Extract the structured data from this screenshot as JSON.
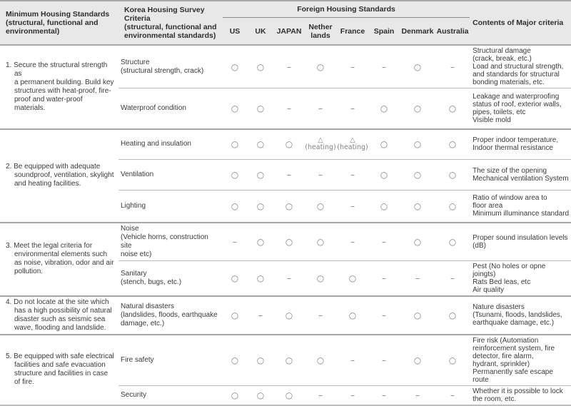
{
  "colors": {
    "header_bg": "#e8e8e8",
    "head_text": "#2e2e2e",
    "body_text": "#3a3a3a",
    "mark_gray": "#828282",
    "line_strong": "#a6a6a6",
    "line_mid": "#8c8c8c",
    "line_light": "#bdbdbd"
  },
  "table": {
    "headers": {
      "col_minimum": "Minimum Housing Standards\n(structural, functional and\nenvironmental)",
      "col_korea": "Korea Housing Survey Criteria\n(structural, functional and\nenvironmental standards)",
      "col_foreign": "Foreign Housing Standards",
      "col_contents": "Contents of Major criteria",
      "countries": [
        "US",
        "UK",
        "JAPAN",
        "Nether\nlands",
        "France",
        "Spain",
        "Denmark",
        "Australia"
      ]
    },
    "legend": {
      "included": "○",
      "not_included": "–",
      "partial": "△"
    },
    "sections": [
      {
        "standard": "1. Secure the structural strength as\na permanent building. Build key\nstructures with heat-proof, fire-\nproof and water-proof materials.",
        "rows": [
          {
            "criteria": "Structure\n(structural strength, crack)",
            "marks": [
              "○",
              "○",
              "–",
              "○",
              "–",
              "–",
              "○",
              "–"
            ],
            "contents": "Structural damage\n(crack, break, etc.)\nLoad and structural strength,\nand standards for structural\nbonding materials, etc."
          },
          {
            "criteria": "Waterproof condition",
            "marks": [
              "○",
              "○",
              "–",
              "–",
              "–",
              "○",
              "○",
              "○"
            ],
            "contents": "Leakage and waterproofing\nstatus of roof, exterior walls,\npipes, toilets, etc\nVisible mold"
          }
        ]
      },
      {
        "standard": "2. Be equipped with adequate\nsoundproof, ventilation, skylight\nand heating facilities.",
        "rows": [
          {
            "criteria": "Heating and insulation",
            "marks": [
              "○",
              "○",
              "○",
              "△\n(heating)",
              "△\n(heating)",
              "○",
              "○",
              "○"
            ],
            "contents": "Proper indoor temperature,\nIndoor thermal resistance"
          },
          {
            "criteria": "Ventilation",
            "marks": [
              "○",
              "○",
              "–",
              "–",
              "–",
              "○",
              "○",
              "○"
            ],
            "contents": "The size of the opening\nMechanical ventilation System"
          },
          {
            "criteria": "Lighting",
            "marks": [
              "○",
              "○",
              "○",
              "○",
              "–",
              "○",
              "○",
              "○"
            ],
            "contents": "Ratio of window area to\nfloor area\nMinimum illuminance standard"
          }
        ]
      },
      {
        "standard": "3. Meet the legal criteria for\nenvironmental elements such\nas noise, vibration, odor and air\npollution.",
        "rows": [
          {
            "criteria": "Noise\n(Vehicle horns, construction site\nnoise etc)",
            "marks": [
              "–",
              "○",
              "○",
              "○",
              "–",
              "–",
              "○",
              "○"
            ],
            "contents": "Proper sound insulation levels\n(dB)"
          },
          {
            "criteria": "Sanitary\n(stench, bugs, etc.)",
            "marks": [
              "○",
              "○",
              "–",
              "○",
              "○",
              "–",
              "–",
              "–"
            ],
            "contents": "Pest (No holes or opne joingts)\nRats Bed leas, etc\nAir quality"
          }
        ]
      },
      {
        "standard": "4. Do not locate at the site which\nhas a high possibility of natural\ndisaster such as seismic sea\nwave, flooding and landslide.",
        "rows": [
          {
            "criteria": "Natural disasters\n(landslides, floods, earthquake\ndamage, etc.)",
            "marks": [
              "○",
              "–",
              "○",
              "–",
              "○",
              "–",
              "○",
              "○"
            ],
            "contents": "Nature disasters\n(Tsunami, floods, landslides,\nearthquake damage, etc.)"
          }
        ]
      },
      {
        "standard": "5. Be equipped with safe electrical\nfacilities and safe evacuation\nstructure and facilities in case\nof fire.",
        "rows": [
          {
            "criteria": "Fire safety",
            "marks": [
              "○",
              "○",
              "○",
              "○",
              "–",
              "–",
              "○",
              "○"
            ],
            "contents": "Fire risk (Automation\nreinforcement system, fire\ndetector, fire alarm,\nhydrant, sprinkler)\nPermanently safe escape route"
          },
          {
            "criteria": "Security",
            "marks": [
              "○",
              "○",
              "○",
              "–",
              "–",
              "–",
              "–",
              "–"
            ],
            "contents": "Whether it is possible to lock\nthe room, etc."
          }
        ]
      }
    ]
  }
}
